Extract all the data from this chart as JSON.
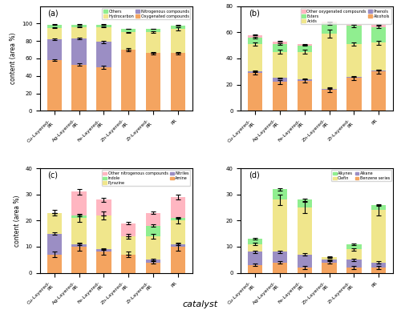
{
  "catalysts": [
    "Cu-Layered-PR",
    "Ag-Layered-PR",
    "Fe-Layered-PR",
    "Zn-Layered-PR",
    "Zr-Layered-PR",
    "PR"
  ],
  "a_data": {
    "title": "(a)",
    "ylim": [
      0,
      120
    ],
    "yticks": [
      0,
      20,
      40,
      60,
      80,
      100
    ],
    "ylabel": "content (area %)",
    "oxygenated": [
      58,
      53,
      50,
      70,
      66,
      66
    ],
    "nitrogenous": [
      24,
      30,
      29,
      0,
      0,
      0
    ],
    "hydrocarbon": [
      13,
      13,
      17,
      20,
      24,
      28
    ],
    "others": [
      4,
      3,
      3,
      4,
      4,
      4
    ],
    "oxygenated_err": [
      1.0,
      1.5,
      1.5,
      1.5,
      1.5,
      1.0
    ],
    "nitrogenous_err": [
      1.0,
      1.0,
      1.5,
      0,
      0,
      0
    ],
    "hydrocarbon_err": [
      0.5,
      0.5,
      0.5,
      0.5,
      1.0,
      1.5
    ],
    "others_err": [
      0.3,
      0.3,
      0.3,
      0.3,
      0.3,
      0.3
    ],
    "colors": [
      "#F4A460",
      "#9B8EC4",
      "#F0E68C",
      "#90EE90"
    ],
    "labels": [
      "Oxygenated compounds",
      "Nitrogenous compounds",
      "Hydrocarbon",
      "Others"
    ]
  },
  "b_data": {
    "title": "(b)",
    "ylim": [
      0,
      80
    ],
    "yticks": [
      0,
      20,
      40,
      60,
      80
    ],
    "alcohols": [
      29,
      22,
      23,
      16,
      25,
      30
    ],
    "phenols": [
      1,
      3,
      1,
      1,
      1,
      1
    ],
    "acids": [
      21,
      20,
      21,
      42,
      25,
      21
    ],
    "esters": [
      5,
      6,
      5,
      8,
      14,
      12
    ],
    "other_oxy": [
      2,
      2,
      1,
      1,
      1,
      2
    ],
    "alcohols_err": [
      1.5,
      1.5,
      1.5,
      2.0,
      1.5,
      1.5
    ],
    "phenols_err": [
      0.2,
      0.3,
      0.2,
      0.2,
      0.2,
      0.2
    ],
    "acids_err": [
      1.5,
      1.5,
      1.5,
      3.0,
      1.5,
      1.5
    ],
    "esters_err": [
      0.5,
      0.5,
      0.5,
      1.0,
      1.0,
      1.0
    ],
    "other_oxy_err": [
      0.3,
      0.3,
      0.3,
      0.3,
      0.3,
      0.3
    ],
    "colors": [
      "#F4A460",
      "#9B8EC4",
      "#F0E68C",
      "#90EE90",
      "#FFB6C1"
    ],
    "labels": [
      "Alcohols",
      "Phenols",
      "Acids",
      "Esters",
      "Other oxygenated compounds"
    ]
  },
  "c_data": {
    "title": "(c)",
    "ylim": [
      0,
      40
    ],
    "yticks": [
      0,
      10,
      20,
      30,
      40
    ],
    "amine": [
      7,
      10,
      8,
      7,
      4,
      10
    ],
    "nitriles": [
      8,
      1,
      1,
      0,
      1,
      1
    ],
    "pyrazine": [
      8,
      10,
      13,
      7,
      9,
      9
    ],
    "indole": [
      0,
      1,
      0,
      0,
      4,
      1
    ],
    "other_nitro": [
      0,
      9,
      6,
      5,
      5,
      8
    ],
    "amine_err": [
      1.0,
      1.5,
      1.0,
      1.0,
      0.5,
      1.5
    ],
    "nitriles_err": [
      0.5,
      0.3,
      0.3,
      0,
      0.3,
      0.3
    ],
    "pyrazine_err": [
      1.0,
      1.5,
      1.5,
      1.0,
      1.0,
      1.0
    ],
    "indole_err": [
      0,
      0.3,
      0,
      0,
      0.5,
      0.3
    ],
    "other_nitro_err": [
      0,
      1.0,
      0.8,
      0.5,
      0.5,
      0.8
    ],
    "colors": [
      "#F4A460",
      "#9B8EC4",
      "#F0E68C",
      "#90EE90",
      "#FFB6C1"
    ],
    "labels": [
      "Amine",
      "Nitriles",
      "Pyrazine",
      "Indole",
      "Other nitrogenous compounds"
    ]
  },
  "d_data": {
    "title": "(d)",
    "ylim": [
      0,
      40
    ],
    "yticks": [
      0,
      10,
      20,
      30,
      40
    ],
    "benzene": [
      3,
      4,
      2,
      4,
      2,
      2
    ],
    "alkane": [
      5,
      4,
      5,
      1,
      3,
      2
    ],
    "olefin": [
      3,
      20,
      18,
      1,
      4,
      20
    ],
    "alkynes": [
      2,
      4,
      3,
      0,
      2,
      2
    ],
    "benzene_err": [
      0.5,
      0.5,
      0.5,
      0.5,
      0.5,
      0.5
    ],
    "alkane_err": [
      0.5,
      0.5,
      0.5,
      0.2,
      0.5,
      0.5
    ],
    "olefin_err": [
      0.5,
      2.0,
      2.0,
      0.2,
      0.5,
      2.0
    ],
    "alkynes_err": [
      0.3,
      0.5,
      0.5,
      0,
      0.3,
      0.3
    ],
    "colors": [
      "#F4A460",
      "#9B8EC4",
      "#F0E68C",
      "#90EE90"
    ],
    "labels": [
      "Benzene series",
      "Alkane",
      "Olefin",
      "Alkynes"
    ]
  },
  "xlabel": "catalyst",
  "background_color": "#ffffff"
}
